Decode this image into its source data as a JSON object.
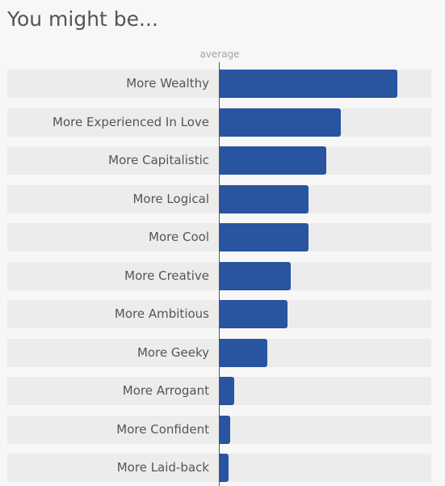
{
  "page": {
    "title": "You might be..."
  },
  "colors": {
    "bar": "#2854a0",
    "row_background": "#ececec",
    "text": "#555555"
  },
  "chart_data": {
    "type": "bar",
    "orientation": "horizontal",
    "reference_label": "average",
    "categories": [
      "More Wealthy",
      "More Experienced In Love",
      "More Capitalistic",
      "More Logical",
      "More Cool",
      "More Creative",
      "More Ambitious",
      "More Geeky",
      "More Arrogant",
      "More Confident",
      "More Laid-back"
    ],
    "values": [
      100,
      68,
      60,
      50,
      50,
      40,
      38,
      27,
      8,
      6,
      5
    ],
    "xlim": [
      0,
      120
    ],
    "grid": false,
    "legend": "none"
  }
}
